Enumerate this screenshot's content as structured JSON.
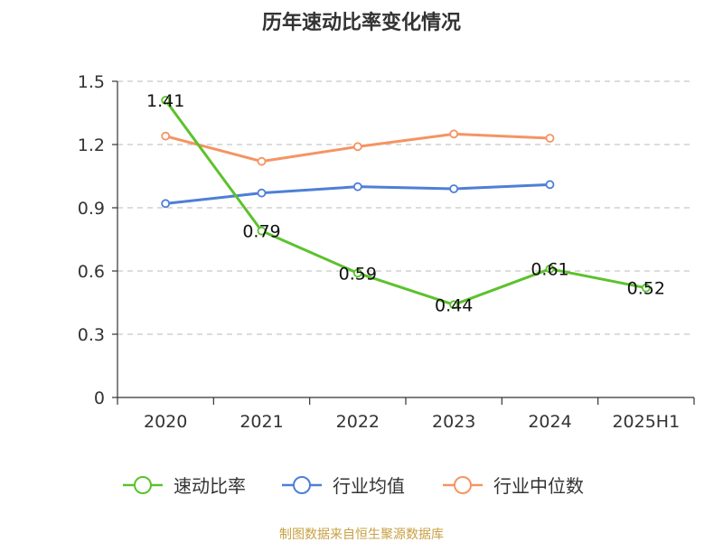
{
  "chart_data": {
    "type": "line",
    "title": "历年速动比率变化情况",
    "categories": [
      "2020",
      "2021",
      "2022",
      "2023",
      "2024",
      "2025H1"
    ],
    "yticks": [
      "0",
      "0.3",
      "0.6",
      "0.9",
      "1.2",
      "1.5"
    ],
    "ylim": [
      0,
      1.5
    ],
    "grid": true,
    "legend_position": "bottom",
    "series": [
      {
        "name": "速动比率",
        "color": "#5cc22c",
        "values": [
          1.41,
          0.79,
          0.59,
          0.44,
          0.61,
          0.52
        ],
        "labels": [
          "1.41",
          "0.79",
          "0.59",
          "0.44",
          "0.61",
          "0.52"
        ]
      },
      {
        "name": "行业均值",
        "color": "#4e7fd6",
        "values": [
          0.92,
          0.97,
          1.0,
          0.99,
          1.01,
          null
        ]
      },
      {
        "name": "行业中位数",
        "color": "#f59463",
        "values": [
          1.24,
          1.12,
          1.19,
          1.25,
          1.23,
          null
        ]
      }
    ]
  },
  "source": "制图数据来自恒生聚源数据库"
}
